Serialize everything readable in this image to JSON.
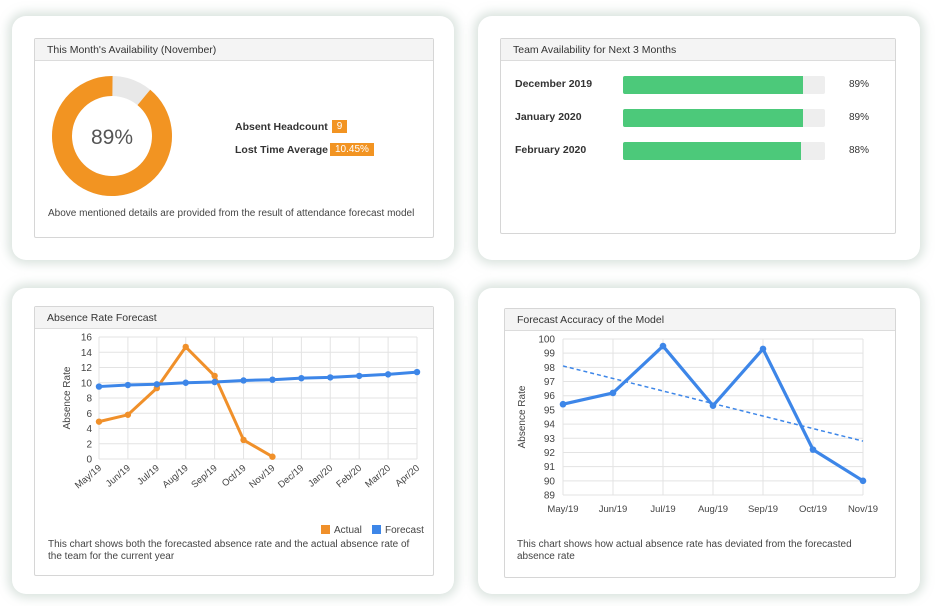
{
  "availability": {
    "title": "This Month's Availability (November)",
    "percent_label": "89%",
    "percent_value": 89,
    "absent_headcount_label": "Absent Headcount",
    "absent_headcount_value": "9",
    "lost_time_label": "Lost Time Average",
    "lost_time_value": "10.45%",
    "footnote": "Above mentioned details are provided from the result of attendance forecast model",
    "colors": {
      "ring": "#f29422",
      "ring_track": "#e8e8e8",
      "badge": "#f29422"
    }
  },
  "team_availability": {
    "title": "Team Availability for Next 3 Months",
    "rows": [
      {
        "month": "December 2019",
        "percent": 89,
        "label": "89%"
      },
      {
        "month": "January 2020",
        "percent": 89,
        "label": "89%"
      },
      {
        "month": "February 2020",
        "percent": 88,
        "label": "88%"
      }
    ],
    "colors": {
      "bar": "#4cc97a",
      "track": "#eeeeee"
    }
  },
  "absence_forecast": {
    "title": "Absence Rate Forecast",
    "footnote": "This chart shows both the forecasted absence rate and the actual absence rate of the team for the current year",
    "chart_data": {
      "type": "line",
      "ylabel": "Absence Rate",
      "xlabel": "",
      "ylim": [
        0,
        16
      ],
      "yticks": [
        "0",
        "2",
        "4",
        "6",
        "8",
        "10",
        "12",
        "14",
        "16"
      ],
      "categories": [
        "May/19",
        "Jun/19",
        "Jul/19",
        "Aug/19",
        "Sep/19",
        "Oct/19",
        "Nov/19",
        "Dec/19",
        "Jan/20",
        "Feb/20",
        "Mar/20",
        "Apr/20"
      ],
      "series": [
        {
          "name": "Actual",
          "color": "#f0902a",
          "values": [
            4.9,
            5.8,
            9.3,
            14.7,
            10.9,
            2.5,
            0.3,
            null,
            null,
            null,
            null,
            null
          ]
        },
        {
          "name": "Forecast",
          "color": "#3d86e8",
          "values": [
            9.5,
            9.7,
            9.8,
            10.0,
            10.1,
            10.3,
            10.4,
            10.6,
            10.7,
            10.9,
            11.1,
            11.4
          ]
        }
      ],
      "legend": "bottom-right",
      "grid": true
    }
  },
  "forecast_accuracy": {
    "title": "Forecast Accuracy of the Model",
    "footnote": "This chart shows how actual absence rate has deviated from the forecasted absence rate",
    "chart_data": {
      "type": "line",
      "ylabel": "Absence Rate",
      "xlabel": "",
      "ylim": [
        89,
        100
      ],
      "yticks": [
        "89",
        "90",
        "91",
        "92",
        "93",
        "94",
        "95",
        "96",
        "97",
        "98",
        "99",
        "100"
      ],
      "categories": [
        "May/19",
        "Jun/19",
        "Jul/19",
        "Aug/19",
        "Sep/19",
        "Oct/19",
        "Nov/19"
      ],
      "series": [
        {
          "color": "#3d86e8",
          "values": [
            95.4,
            96.2,
            99.5,
            95.3,
            99.3,
            92.2,
            90.0
          ]
        }
      ],
      "trendline": {
        "color": "#3d86e8",
        "style": "dashed",
        "start": 98.1,
        "end": 92.8
      },
      "grid": true
    }
  }
}
